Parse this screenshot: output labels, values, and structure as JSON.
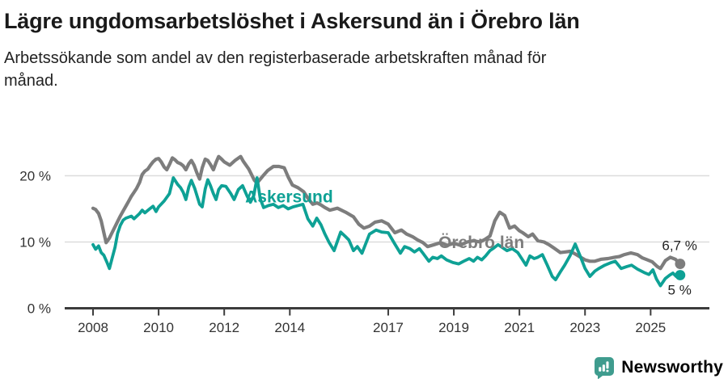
{
  "header": {
    "title": "Lägre ungdomsarbetslöshet i Askersund än i Örebro län",
    "subtitle_lines": [
      "Arbetssökande som andel av den registerbaserade arbetskraften månad för",
      "månad."
    ]
  },
  "footer": {
    "brand": "Newsworthy",
    "logo_icon": "speech-bubble-bar-chart"
  },
  "colors": {
    "askersund": "#0ea195",
    "orebro": "#7d7d7d",
    "axis": "#3c3c3c",
    "grid": "#dcdcdc",
    "tick_text": "#333333",
    "value_text": "#222222",
    "brand": "#3f9c8e"
  },
  "chart_data": {
    "type": "line",
    "x_axis": {
      "ticks": [
        2008,
        2010,
        2012,
        2014,
        2017,
        2019,
        2021,
        2023,
        2025
      ],
      "tick_labels": [
        "2008",
        "2010",
        "2012",
        "2014",
        "2017",
        "2019",
        "2021",
        "2023",
        "2025"
      ],
      "range": [
        2007.1,
        2026.8
      ]
    },
    "y_axis": {
      "ticks": [
        0,
        10,
        20
      ],
      "tick_labels": [
        "0 %",
        "10 %",
        "20 %"
      ],
      "range": [
        0,
        24
      ],
      "grid": true
    },
    "legend_position": "inline-labels",
    "series": [
      {
        "name": "Örebro län",
        "color": "#7d7d7d",
        "end_label": "6,7 %",
        "end_value": 6.7,
        "label_anchor": {
          "year": 2018.53,
          "value": 9.1
        },
        "points": [
          [
            2008.0,
            15.1
          ],
          [
            2008.08,
            14.9
          ],
          [
            2008.17,
            14.3
          ],
          [
            2008.25,
            13.2
          ],
          [
            2008.33,
            11.4
          ],
          [
            2008.4,
            9.9
          ],
          [
            2008.5,
            10.6
          ],
          [
            2008.58,
            11.4
          ],
          [
            2008.67,
            12.3
          ],
          [
            2008.75,
            13.1
          ],
          [
            2008.83,
            13.9
          ],
          [
            2008.92,
            14.7
          ],
          [
            2009.0,
            15.4
          ],
          [
            2009.08,
            16.1
          ],
          [
            2009.17,
            16.9
          ],
          [
            2009.25,
            17.5
          ],
          [
            2009.33,
            18.1
          ],
          [
            2009.42,
            19.0
          ],
          [
            2009.5,
            20.2
          ],
          [
            2009.58,
            20.7
          ],
          [
            2009.67,
            21.0
          ],
          [
            2009.75,
            21.6
          ],
          [
            2009.83,
            22.1
          ],
          [
            2009.92,
            22.5
          ],
          [
            2010.0,
            22.6
          ],
          [
            2010.08,
            22.1
          ],
          [
            2010.17,
            21.3
          ],
          [
            2010.25,
            20.9
          ],
          [
            2010.33,
            21.7
          ],
          [
            2010.42,
            22.7
          ],
          [
            2010.5,
            22.4
          ],
          [
            2010.58,
            22.0
          ],
          [
            2010.67,
            21.8
          ],
          [
            2010.75,
            21.5
          ],
          [
            2010.83,
            20.9
          ],
          [
            2010.92,
            21.8
          ],
          [
            2011.0,
            22.3
          ],
          [
            2011.08,
            21.6
          ],
          [
            2011.17,
            20.4
          ],
          [
            2011.25,
            19.5
          ],
          [
            2011.33,
            21.2
          ],
          [
            2011.42,
            22.5
          ],
          [
            2011.5,
            22.3
          ],
          [
            2011.58,
            21.7
          ],
          [
            2011.67,
            20.9
          ],
          [
            2011.75,
            22.0
          ],
          [
            2011.83,
            22.9
          ],
          [
            2011.92,
            22.5
          ],
          [
            2012.0,
            22.1
          ],
          [
            2012.17,
            21.6
          ],
          [
            2012.33,
            22.3
          ],
          [
            2012.5,
            22.9
          ],
          [
            2012.58,
            22.2
          ],
          [
            2012.75,
            21.0
          ],
          [
            2012.92,
            19.3
          ],
          [
            2013.0,
            18.9
          ],
          [
            2013.17,
            19.9
          ],
          [
            2013.33,
            20.8
          ],
          [
            2013.5,
            21.4
          ],
          [
            2013.67,
            21.4
          ],
          [
            2013.83,
            21.2
          ],
          [
            2013.95,
            19.8
          ],
          [
            2014.08,
            18.6
          ],
          [
            2014.25,
            18.2
          ],
          [
            2014.42,
            17.6
          ],
          [
            2014.58,
            16.4
          ],
          [
            2014.7,
            15.7
          ],
          [
            2014.83,
            15.9
          ],
          [
            2014.95,
            15.6
          ],
          [
            2015.07,
            15.2
          ],
          [
            2015.22,
            14.8
          ],
          [
            2015.45,
            15.1
          ],
          [
            2015.7,
            14.5
          ],
          [
            2015.94,
            13.8
          ],
          [
            2016.1,
            12.7
          ],
          [
            2016.26,
            12.1
          ],
          [
            2016.43,
            12.4
          ],
          [
            2016.6,
            13.0
          ],
          [
            2016.8,
            13.2
          ],
          [
            2017.0,
            12.7
          ],
          [
            2017.2,
            11.4
          ],
          [
            2017.4,
            11.8
          ],
          [
            2017.56,
            11.2
          ],
          [
            2017.74,
            10.8
          ],
          [
            2017.9,
            10.3
          ],
          [
            2018.06,
            9.9
          ],
          [
            2018.2,
            9.3
          ],
          [
            2018.4,
            9.6
          ],
          [
            2018.6,
            9.9
          ],
          [
            2018.8,
            9.5
          ],
          [
            2019.0,
            9.8
          ],
          [
            2019.2,
            9.5
          ],
          [
            2019.4,
            10.0
          ],
          [
            2019.6,
            10.2
          ],
          [
            2019.8,
            10.0
          ],
          [
            2019.95,
            10.4
          ],
          [
            2020.1,
            10.9
          ],
          [
            2020.25,
            13.2
          ],
          [
            2020.4,
            14.5
          ],
          [
            2020.55,
            14.0
          ],
          [
            2020.7,
            12.1
          ],
          [
            2020.85,
            12.4
          ],
          [
            2021.0,
            11.7
          ],
          [
            2021.1,
            11.4
          ],
          [
            2021.27,
            10.8
          ],
          [
            2021.4,
            11.2
          ],
          [
            2021.56,
            10.2
          ],
          [
            2021.75,
            10.0
          ],
          [
            2021.9,
            9.6
          ],
          [
            2022.05,
            9.1
          ],
          [
            2022.25,
            8.4
          ],
          [
            2022.4,
            8.5
          ],
          [
            2022.55,
            8.6
          ],
          [
            2022.7,
            8.2
          ],
          [
            2022.9,
            7.6
          ],
          [
            2023.0,
            7.3
          ],
          [
            2023.15,
            7.1
          ],
          [
            2023.3,
            7.1
          ],
          [
            2023.5,
            7.4
          ],
          [
            2023.7,
            7.5
          ],
          [
            2023.9,
            7.7
          ],
          [
            2024.05,
            7.8
          ],
          [
            2024.2,
            8.1
          ],
          [
            2024.4,
            8.35
          ],
          [
            2024.6,
            8.1
          ],
          [
            2024.75,
            7.6
          ],
          [
            2024.9,
            7.3
          ],
          [
            2025.05,
            7.0
          ],
          [
            2025.2,
            6.3
          ],
          [
            2025.3,
            6.0
          ],
          [
            2025.45,
            7.2
          ],
          [
            2025.6,
            7.7
          ],
          [
            2025.75,
            7.4
          ],
          [
            2025.9,
            6.7
          ]
        ]
      },
      {
        "name": "Askersund",
        "color": "#0ea195",
        "end_label": "5 %",
        "end_value": 5.0,
        "label_anchor": {
          "year": 2012.64,
          "value": 16.0
        },
        "points": [
          [
            2008.0,
            9.6
          ],
          [
            2008.08,
            8.9
          ],
          [
            2008.17,
            9.4
          ],
          [
            2008.25,
            8.4
          ],
          [
            2008.33,
            8.0
          ],
          [
            2008.42,
            7.0
          ],
          [
            2008.5,
            6.0
          ],
          [
            2008.58,
            7.5
          ],
          [
            2008.67,
            9.2
          ],
          [
            2008.75,
            11.3
          ],
          [
            2008.83,
            12.5
          ],
          [
            2008.92,
            13.3
          ],
          [
            2009.0,
            13.6
          ],
          [
            2009.17,
            13.9
          ],
          [
            2009.25,
            13.5
          ],
          [
            2009.42,
            14.3
          ],
          [
            2009.5,
            14.8
          ],
          [
            2009.58,
            14.4
          ],
          [
            2009.75,
            15.1
          ],
          [
            2009.83,
            15.4
          ],
          [
            2009.92,
            14.6
          ],
          [
            2010.0,
            15.3
          ],
          [
            2010.17,
            16.2
          ],
          [
            2010.33,
            17.3
          ],
          [
            2010.45,
            19.7
          ],
          [
            2010.58,
            18.7
          ],
          [
            2010.67,
            18.2
          ],
          [
            2010.75,
            17.5
          ],
          [
            2010.83,
            16.4
          ],
          [
            2010.92,
            18.3
          ],
          [
            2011.0,
            19.3
          ],
          [
            2011.1,
            18.1
          ],
          [
            2011.25,
            15.7
          ],
          [
            2011.33,
            15.3
          ],
          [
            2011.42,
            18.0
          ],
          [
            2011.5,
            19.4
          ],
          [
            2011.58,
            18.5
          ],
          [
            2011.67,
            17.3
          ],
          [
            2011.75,
            16.4
          ],
          [
            2011.83,
            17.9
          ],
          [
            2011.92,
            18.5
          ],
          [
            2012.05,
            18.4
          ],
          [
            2012.2,
            17.3
          ],
          [
            2012.3,
            16.4
          ],
          [
            2012.43,
            17.9
          ],
          [
            2012.56,
            18.5
          ],
          [
            2012.7,
            16.9
          ],
          [
            2012.8,
            16.0
          ],
          [
            2012.9,
            17.0
          ],
          [
            2013.0,
            19.7
          ],
          [
            2013.1,
            16.5
          ],
          [
            2013.2,
            15.2
          ],
          [
            2013.35,
            15.5
          ],
          [
            2013.5,
            15.7
          ],
          [
            2013.65,
            15.2
          ],
          [
            2013.8,
            15.5
          ],
          [
            2013.95,
            15.0
          ],
          [
            2014.1,
            15.3
          ],
          [
            2014.25,
            15.5
          ],
          [
            2014.4,
            15.7
          ],
          [
            2014.55,
            13.5
          ],
          [
            2014.7,
            12.4
          ],
          [
            2014.82,
            13.6
          ],
          [
            2014.95,
            12.6
          ],
          [
            2015.07,
            11.2
          ],
          [
            2015.2,
            9.9
          ],
          [
            2015.35,
            8.7
          ],
          [
            2015.55,
            11.5
          ],
          [
            2015.7,
            10.8
          ],
          [
            2015.8,
            10.3
          ],
          [
            2015.94,
            8.7
          ],
          [
            2016.06,
            9.3
          ],
          [
            2016.2,
            8.3
          ],
          [
            2016.43,
            11.2
          ],
          [
            2016.63,
            11.8
          ],
          [
            2016.8,
            11.5
          ],
          [
            2017.0,
            11.4
          ],
          [
            2017.2,
            9.7
          ],
          [
            2017.37,
            8.3
          ],
          [
            2017.5,
            9.3
          ],
          [
            2017.66,
            9.0
          ],
          [
            2017.8,
            8.5
          ],
          [
            2017.95,
            9.0
          ],
          [
            2018.06,
            8.3
          ],
          [
            2018.24,
            7.1
          ],
          [
            2018.36,
            7.7
          ],
          [
            2018.5,
            7.5
          ],
          [
            2018.62,
            7.9
          ],
          [
            2018.78,
            7.3
          ],
          [
            2018.97,
            6.9
          ],
          [
            2019.15,
            6.7
          ],
          [
            2019.3,
            7.1
          ],
          [
            2019.47,
            7.5
          ],
          [
            2019.6,
            7.1
          ],
          [
            2019.72,
            7.7
          ],
          [
            2019.85,
            7.3
          ],
          [
            2019.97,
            7.9
          ],
          [
            2020.1,
            8.7
          ],
          [
            2020.22,
            9.1
          ],
          [
            2020.35,
            9.6
          ],
          [
            2020.5,
            9.1
          ],
          [
            2020.62,
            8.7
          ],
          [
            2020.78,
            9.0
          ],
          [
            2020.95,
            8.4
          ],
          [
            2021.07,
            7.5
          ],
          [
            2021.2,
            6.5
          ],
          [
            2021.32,
            7.9
          ],
          [
            2021.45,
            7.5
          ],
          [
            2021.56,
            7.7
          ],
          [
            2021.7,
            8.1
          ],
          [
            2021.85,
            6.5
          ],
          [
            2022.0,
            4.8
          ],
          [
            2022.1,
            4.3
          ],
          [
            2022.25,
            5.5
          ],
          [
            2022.38,
            6.5
          ],
          [
            2022.55,
            8.0
          ],
          [
            2022.7,
            9.7
          ],
          [
            2022.85,
            7.9
          ],
          [
            2023.0,
            6.0
          ],
          [
            2023.15,
            4.8
          ],
          [
            2023.3,
            5.6
          ],
          [
            2023.42,
            6.0
          ],
          [
            2023.6,
            6.5
          ],
          [
            2023.8,
            6.9
          ],
          [
            2023.92,
            7.1
          ],
          [
            2024.1,
            6.0
          ],
          [
            2024.28,
            6.3
          ],
          [
            2024.42,
            6.5
          ],
          [
            2024.6,
            5.9
          ],
          [
            2024.8,
            5.4
          ],
          [
            2024.95,
            5.1
          ],
          [
            2025.07,
            5.8
          ],
          [
            2025.18,
            4.4
          ],
          [
            2025.3,
            3.4
          ],
          [
            2025.45,
            4.5
          ],
          [
            2025.58,
            5.0
          ],
          [
            2025.68,
            5.3
          ],
          [
            2025.78,
            4.8
          ],
          [
            2025.9,
            5.0
          ]
        ]
      }
    ]
  }
}
